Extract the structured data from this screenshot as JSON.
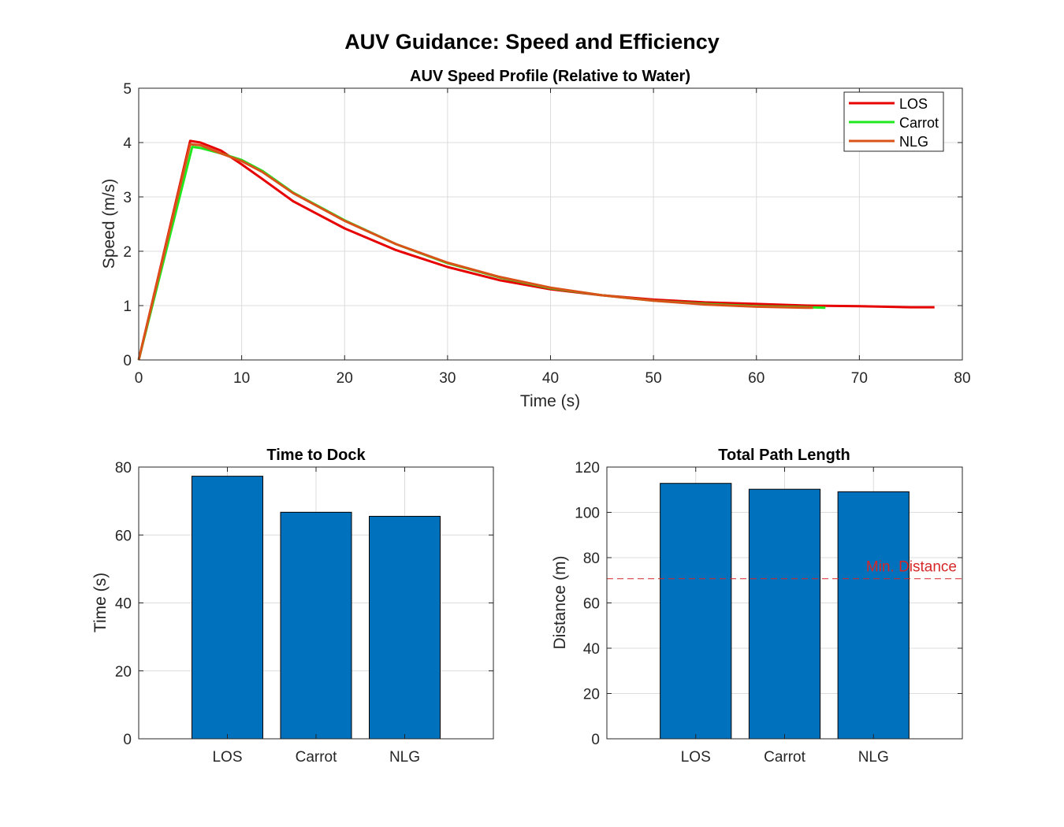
{
  "figure": {
    "suptitle": "AUV Guidance: Speed and Efficiency"
  },
  "colors": {
    "LOS": "#e60000",
    "Carrot": "#1fe81f",
    "NLG": "#d95319",
    "bar": "#0072bd",
    "ref_line": "#d62728"
  },
  "chart_data": [
    {
      "type": "line",
      "title": "AUV Speed Profile (Relative to Water)",
      "xlabel": "Time (s)",
      "ylabel": "Speed (m/s)",
      "xlim": [
        0,
        80
      ],
      "ylim": [
        0,
        5
      ],
      "xticks": [
        0,
        10,
        20,
        30,
        40,
        50,
        60,
        70,
        80
      ],
      "yticks": [
        0,
        1,
        2,
        3,
        4,
        5
      ],
      "grid": true,
      "legend_position": "top-right",
      "series": [
        {
          "name": "LOS",
          "color": "#e60000",
          "x": [
            0,
            5,
            6,
            8,
            10,
            12,
            15,
            20,
            25,
            30,
            35,
            40,
            45,
            50,
            55,
            60,
            65,
            70,
            75,
            77.3
          ],
          "y": [
            0,
            4.03,
            4.0,
            3.85,
            3.6,
            3.33,
            2.92,
            2.42,
            2.02,
            1.71,
            1.47,
            1.3,
            1.19,
            1.11,
            1.06,
            1.03,
            1.0,
            0.99,
            0.97,
            0.97
          ]
        },
        {
          "name": "Carrot",
          "color": "#1fe81f",
          "x": [
            0,
            5.2,
            6,
            8,
            10,
            12,
            15,
            20,
            25,
            30,
            35,
            40,
            45,
            50,
            55,
            60,
            65,
            66.7
          ],
          "y": [
            0,
            3.92,
            3.9,
            3.8,
            3.68,
            3.48,
            3.08,
            2.57,
            2.13,
            1.78,
            1.52,
            1.32,
            1.19,
            1.09,
            1.03,
            0.99,
            0.97,
            0.96
          ]
        },
        {
          "name": "NLG",
          "color": "#d95319",
          "x": [
            0,
            5,
            6,
            8,
            10,
            12,
            15,
            20,
            25,
            30,
            35,
            40,
            45,
            50,
            55,
            60,
            65,
            65.5
          ],
          "y": [
            0,
            3.97,
            3.95,
            3.8,
            3.66,
            3.46,
            3.07,
            2.56,
            2.13,
            1.79,
            1.53,
            1.33,
            1.19,
            1.09,
            1.02,
            0.98,
            0.96,
            0.96
          ]
        }
      ]
    },
    {
      "type": "bar",
      "title": "Time to Dock",
      "ylabel": "Time (s)",
      "categories": [
        "LOS",
        "Carrot",
        "NLG"
      ],
      "values": [
        77.3,
        66.7,
        65.5
      ],
      "ylim": [
        0,
        80
      ],
      "yticks": [
        0,
        20,
        40,
        60,
        80
      ],
      "grid": true,
      "color": "#0072bd"
    },
    {
      "type": "bar",
      "title": "Total Path Length",
      "ylabel": "Distance (m)",
      "categories": [
        "LOS",
        "Carrot",
        "NLG"
      ],
      "values": [
        112.8,
        110.2,
        109.1
      ],
      "ylim": [
        0,
        120
      ],
      "yticks": [
        0,
        20,
        40,
        60,
        80,
        100,
        120
      ],
      "grid": true,
      "color": "#0072bd",
      "reference_line": {
        "value": 70.7,
        "label": "Min. Distance",
        "color": "#d62728",
        "style": "dashed"
      }
    }
  ]
}
